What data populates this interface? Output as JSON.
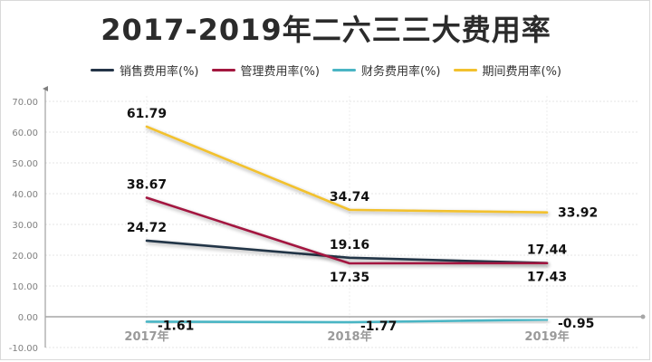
{
  "chart_data": {
    "type": "line",
    "title": "2017-2019年二六三三大费用率",
    "categories": [
      "2017年",
      "2018年",
      "2019年"
    ],
    "ylim": [
      -10,
      70
    ],
    "yticks": [
      "-10.00",
      "0.00",
      "10.00",
      "20.00",
      "30.00",
      "40.00",
      "50.00",
      "60.00",
      "70.00"
    ],
    "grid": true,
    "legend_position": "top",
    "series": [
      {
        "name": "销售费用率(%)",
        "color": "#243447",
        "values": [
          24.72,
          19.16,
          17.44
        ],
        "labels": [
          "24.72",
          "19.16",
          "17.44"
        ],
        "label_pos": [
          "above",
          "above",
          "above"
        ]
      },
      {
        "name": "管理费用率(%)",
        "color": "#a3173f",
        "values": [
          38.67,
          17.35,
          17.43
        ],
        "labels": [
          "38.67",
          "17.35",
          "17.43"
        ],
        "label_pos": [
          "above",
          "below",
          "below"
        ]
      },
      {
        "name": "财务费用率(%)",
        "color": "#4ab5c4",
        "values": [
          -1.61,
          -1.77,
          -0.95
        ],
        "labels": [
          "-1.61",
          "-1.77",
          "-0.95"
        ],
        "label_pos": [
          "right",
          "right",
          "right"
        ]
      },
      {
        "name": "期间费用率(%)",
        "color": "#f2c12e",
        "values": [
          61.79,
          34.74,
          33.92
        ],
        "labels": [
          "61.79",
          "34.74",
          "33.92"
        ],
        "label_pos": [
          "above",
          "above",
          "right"
        ]
      }
    ]
  }
}
